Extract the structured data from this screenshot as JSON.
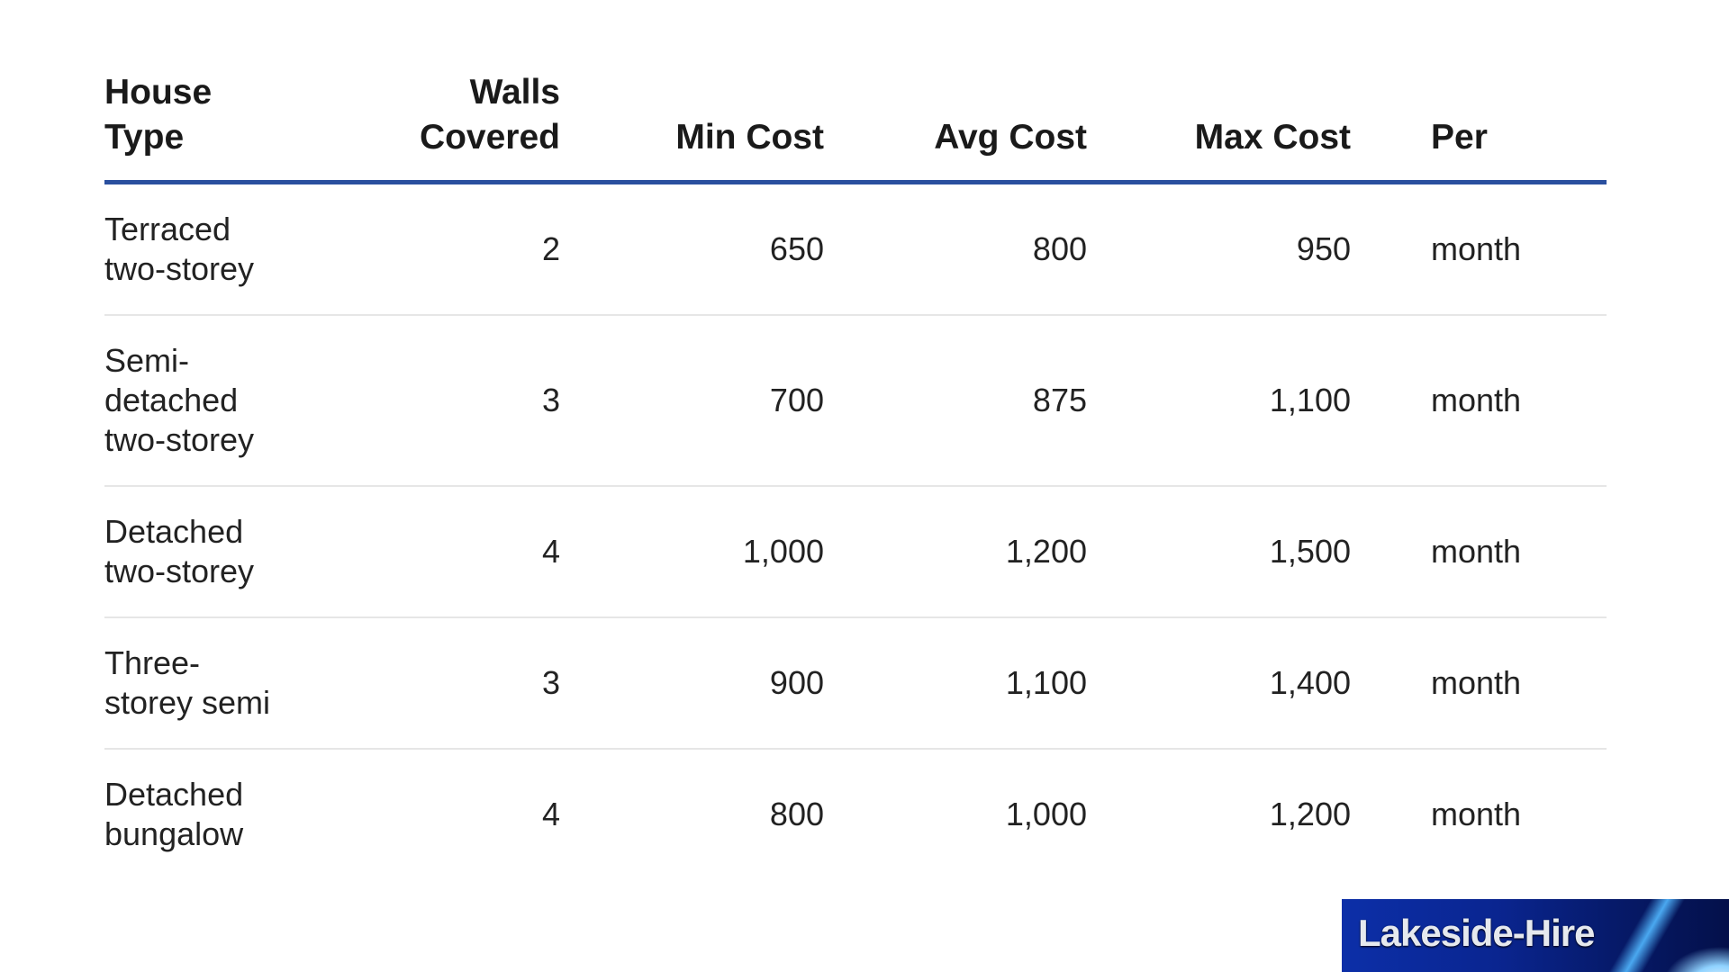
{
  "table": {
    "headers": [
      "House\nType",
      "Walls\nCovered",
      "Min Cost",
      "Avg Cost",
      "Max Cost",
      "Per"
    ],
    "rows": [
      [
        "Terraced two-storey",
        "2",
        "650",
        "800",
        "950",
        "month"
      ],
      [
        "Semi-detached two-storey",
        "3",
        "700",
        "875",
        "1,100",
        "month"
      ],
      [
        "Detached two-storey",
        "4",
        "1,000",
        "1,200",
        "1,500",
        "month"
      ],
      [
        "Three-storey semi",
        "3",
        "900",
        "1,100",
        "1,400",
        "month"
      ],
      [
        "Detached bungalow",
        "4",
        "800",
        "1,000",
        "1,200",
        "month"
      ]
    ],
    "header_rule_color": "#2a4f9e"
  },
  "logo": {
    "text": "Lakeside-Hire"
  }
}
